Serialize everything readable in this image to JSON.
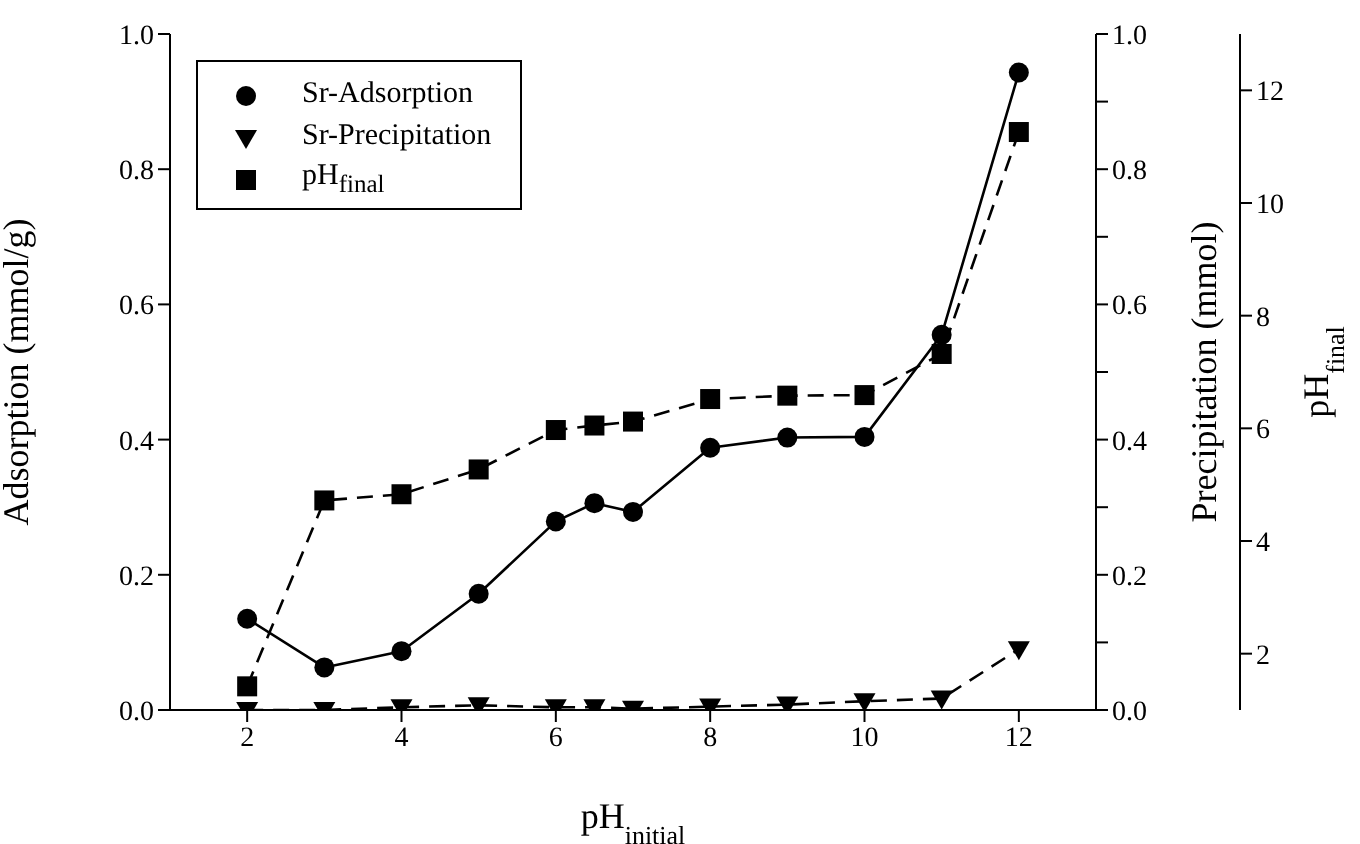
{
  "chart_data": {
    "type": "line",
    "xlabel": "pH$_{initial}$",
    "ylabel": "Adsorption (mmol/g)",
    "y2label": "Precipitation (mmol)",
    "y3label": "pH$_{final}$",
    "x": [
      2,
      3,
      4,
      5,
      6,
      6.5,
      7,
      8,
      9,
      10,
      11,
      12
    ],
    "xlim": [
      1,
      13
    ],
    "xticks": [
      2,
      4,
      6,
      8,
      10,
      12
    ],
    "ylim": [
      0,
      1
    ],
    "yticks": [
      {
        "value": 0,
        "label": "0.0"
      },
      0.2,
      0.4,
      0.6,
      0.8,
      {
        "value": 1,
        "label": "1.0"
      }
    ],
    "y2lim": [
      0,
      1
    ],
    "y2ticks": [
      {
        "value": 0,
        "label": "0.0"
      },
      {
        "value": 0.1,
        "label": null
      },
      0.2,
      {
        "value": 0.3,
        "label": null
      },
      0.4,
      {
        "value": 0.5,
        "label": null
      },
      0.6,
      {
        "value": 0.7,
        "label": null
      },
      0.8,
      {
        "value": 0.9,
        "label": null
      },
      {
        "value": 1,
        "label": "1.0"
      }
    ],
    "y3lim": [
      1,
      13
    ],
    "y3ticks": [
      2,
      4,
      6,
      8,
      10,
      12
    ],
    "legend": "top left",
    "series": [
      {
        "name": "Sr-Adsorption",
        "color": "#000000",
        "marker": "circle",
        "line_style": "solid",
        "values": [
          0.135,
          0.063,
          0.087,
          0.172,
          0.279,
          0.306,
          0.293,
          0.388,
          0.403,
          0.404,
          0.555,
          0.943
        ]
      },
      {
        "name": "Sr-Precipitation",
        "color": "#000000",
        "marker": "triangle",
        "line_style": "dashed",
        "axis": "y2",
        "values": [
          0.0,
          0.0,
          0.004,
          0.007,
          0.004,
          0.004,
          0.002,
          0.005,
          0.008,
          0.013,
          0.017,
          0.09
        ]
      },
      {
        "name": "pH$_{final}$",
        "color": "#000000",
        "marker": "square",
        "line_style": "dashed",
        "axis": "y3",
        "values": [
          1.42,
          4.72,
          4.83,
          5.27,
          5.97,
          6.05,
          6.12,
          6.52,
          6.58,
          6.59,
          7.32,
          11.26
        ]
      }
    ]
  }
}
